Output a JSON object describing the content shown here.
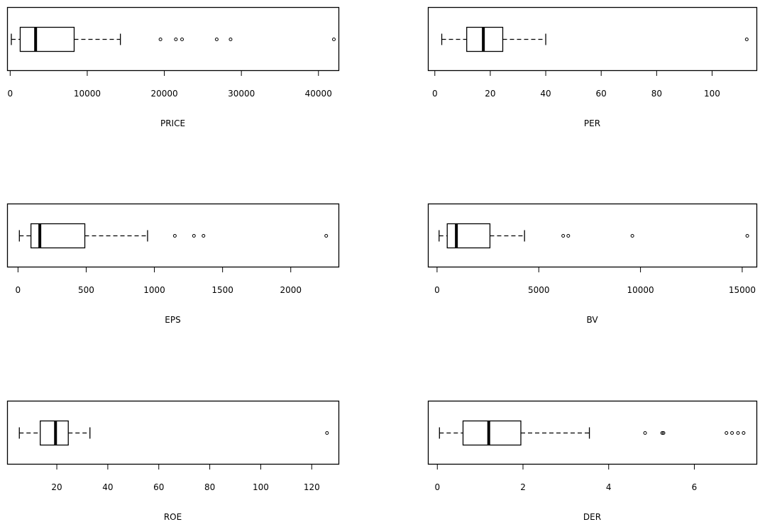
{
  "chart_data": [
    {
      "type": "boxplot",
      "orientation": "horizontal",
      "xlabel": "PRICE",
      "xlim": [
        -400,
        42600
      ],
      "ticks": [
        0,
        10000,
        20000,
        30000,
        40000
      ],
      "tick_labels": [
        "0",
        "10000",
        "20000",
        "30000",
        "40000"
      ],
      "whisker_low": 150,
      "q1": 1300,
      "median": 3300,
      "q3": 8300,
      "whisker_high": 14300,
      "outliers": [
        19500,
        21500,
        22300,
        26800,
        28600,
        42000
      ]
    },
    {
      "type": "boxplot",
      "orientation": "horizontal",
      "xlabel": "PER",
      "xlim": [
        -2.5,
        116
      ],
      "ticks": [
        0,
        20,
        40,
        60,
        80,
        100
      ],
      "tick_labels": [
        "0",
        "20",
        "40",
        "60",
        "80",
        "100"
      ],
      "whisker_low": 2.5,
      "q1": 11.5,
      "median": 17.5,
      "q3": 24.5,
      "whisker_high": 40,
      "outliers": [
        112.5
      ]
    },
    {
      "type": "boxplot",
      "orientation": "horizontal",
      "xlabel": "EPS",
      "xlim": [
        -80,
        2350
      ],
      "ticks": [
        0,
        500,
        1000,
        1500,
        2000
      ],
      "tick_labels": [
        "0",
        "500",
        "1000",
        "1500",
        "2000"
      ],
      "whisker_low": 10,
      "q1": 95,
      "median": 160,
      "q3": 490,
      "whisker_high": 950,
      "outliers": [
        1150,
        1290,
        1360,
        2260
      ]
    },
    {
      "type": "boxplot",
      "orientation": "horizontal",
      "xlabel": "BV",
      "xlim": [
        -450,
        15700
      ],
      "ticks": [
        0,
        5000,
        10000,
        15000
      ],
      "tick_labels": [
        "0",
        "5000",
        "10000",
        "15000"
      ],
      "whisker_low": 100,
      "q1": 500,
      "median": 950,
      "q3": 2600,
      "whisker_high": 4300,
      "outliers": [
        6200,
        6450,
        9600,
        15250
      ]
    },
    {
      "type": "boxplot",
      "orientation": "horizontal",
      "xlabel": "ROE",
      "xlim": [
        0.5,
        130.5
      ],
      "ticks": [
        20,
        40,
        60,
        80,
        100,
        120
      ],
      "tick_labels": [
        "20",
        "40",
        "60",
        "80",
        "100",
        "120"
      ],
      "whisker_low": 5.3,
      "q1": 13.5,
      "median": 19.5,
      "q3": 24.5,
      "whisker_high": 33,
      "outliers": [
        126
      ]
    },
    {
      "type": "boxplot",
      "orientation": "horizontal",
      "xlabel": "DER",
      "xlim": [
        -0.22,
        7.45
      ],
      "ticks": [
        0,
        2,
        4,
        6
      ],
      "tick_labels": [
        "0",
        "2",
        "4",
        "6"
      ],
      "whisker_low": 0.05,
      "q1": 0.6,
      "median": 1.2,
      "q3": 1.95,
      "whisker_high": 3.55,
      "outliers": [
        4.85,
        5.25,
        5.28,
        6.75,
        6.88,
        7.02,
        7.15
      ]
    }
  ]
}
